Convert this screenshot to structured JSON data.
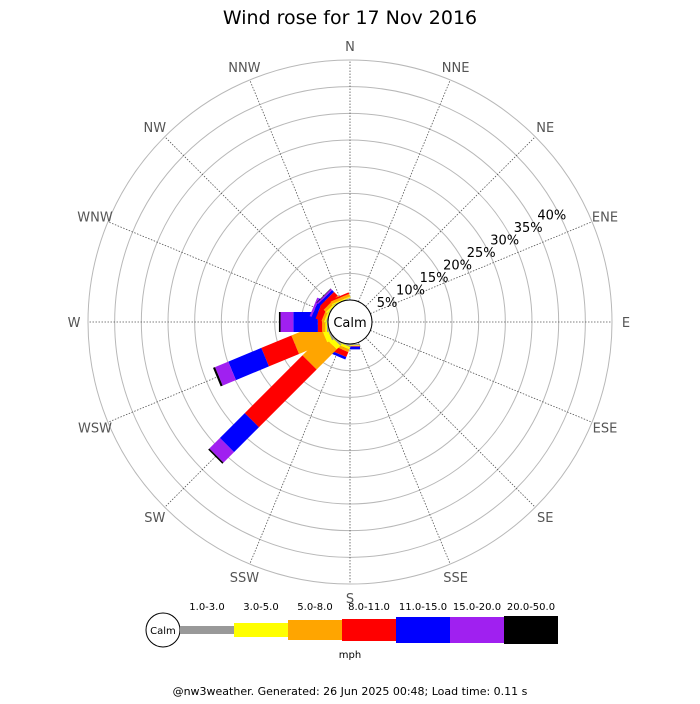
{
  "chart_data": {
    "type": "wind-rose",
    "title": "Wind rose for 17 Nov 2016",
    "directions": [
      "N",
      "NNE",
      "NE",
      "ENE",
      "E",
      "ESE",
      "SE",
      "SSE",
      "S",
      "SSW",
      "SW",
      "WSW",
      "W",
      "WNW",
      "NW",
      "NNW"
    ],
    "radial_ticks": [
      "5%",
      "10%",
      "15%",
      "20%",
      "25%",
      "30%",
      "35%",
      "40%"
    ],
    "radial_max_percent": 45,
    "calm_label": "Calm",
    "unit_label": "mph",
    "speed_bins": [
      {
        "label": "1.0-3.0",
        "color": "#999999"
      },
      {
        "label": "3.0-5.0",
        "color": "#ffff00"
      },
      {
        "label": "5.0-8.0",
        "color": "#ffa500"
      },
      {
        "label": "8.0-11.0",
        "color": "#ff0000"
      },
      {
        "label": "11.0-15.0",
        "color": "#0000ff"
      },
      {
        "label": "15.0-20.0",
        "color": "#a020f0"
      },
      {
        "label": "20.0-50.0",
        "color": "#000000"
      }
    ],
    "series": [
      {
        "direction": "S",
        "values": [
          0.2,
          0.1,
          0.1,
          0.1,
          0.5,
          0.0,
          0.0
        ]
      },
      {
        "direction": "SSW",
        "values": [
          0.2,
          0.5,
          0.5,
          1.0,
          0.5,
          0.0,
          0.0
        ]
      },
      {
        "direction": "SW",
        "values": [
          0.3,
          1.0,
          5.3,
          15.3,
          6.6,
          2.8,
          0.3
        ]
      },
      {
        "direction": "WSW",
        "values": [
          0.3,
          1.0,
          5.7,
          6.1,
          6.7,
          2.7,
          0.4
        ]
      },
      {
        "direction": "W",
        "values": [
          0.2,
          0.3,
          0.6,
          0.8,
          4.6,
          2.4,
          0.3
        ]
      },
      {
        "direction": "WNW",
        "values": [
          0.1,
          0.3,
          0.5,
          1.2,
          0.8,
          0.4,
          0.0
        ]
      },
      {
        "direction": "NW",
        "values": [
          0.1,
          0.3,
          0.6,
          1.0,
          0.5,
          0.3,
          0.1
        ]
      },
      {
        "direction": "NNW",
        "values": [
          0.1,
          0.2,
          0.5,
          0.3,
          0.0,
          0.0,
          0.0
        ]
      }
    ]
  },
  "footer": "@nw3weather. Generated: 26 Jun 2025 00:48; Load time: 0.11 s"
}
